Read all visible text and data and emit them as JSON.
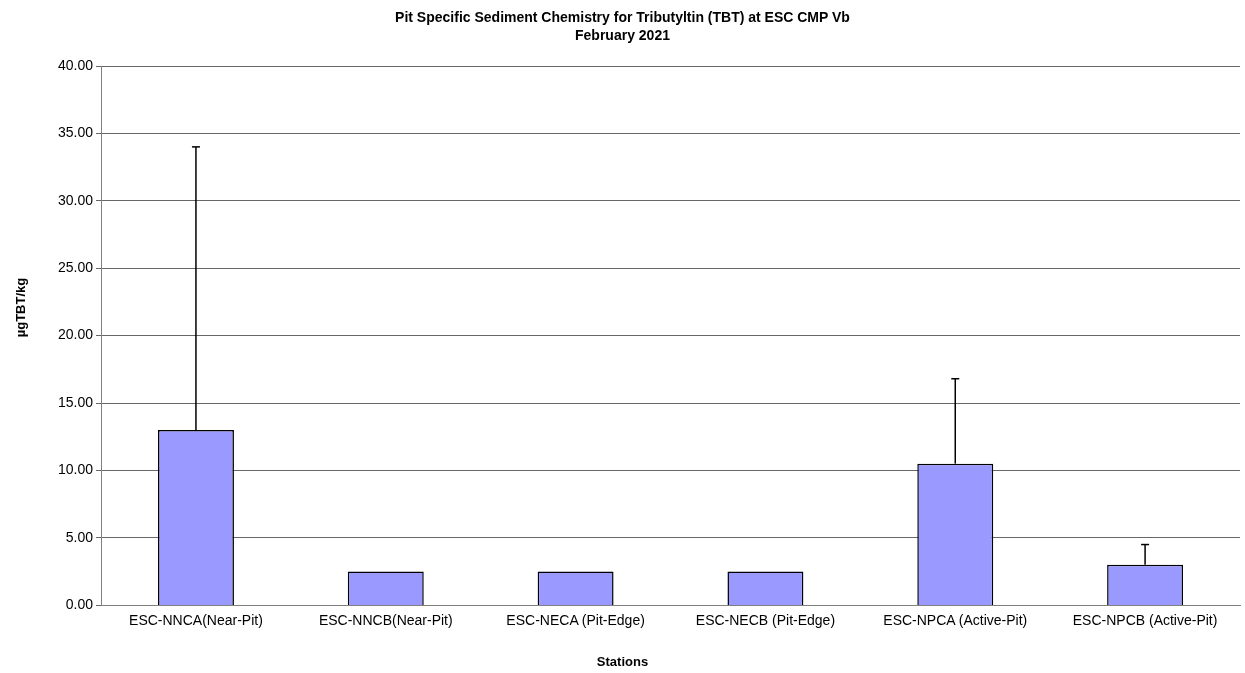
{
  "chart_data": {
    "type": "bar",
    "title": "Pit Specific Sediment Chemistry for Tributyltin (TBT) at  ESC CMP Vb",
    "subtitle": "February 2021",
    "xlabel": "Stations",
    "ylabel": "µgTBT/kg",
    "categories": [
      "ESC-NNCA(Near-Pit)",
      "ESC-NNCB(Near-Pit)",
      "ESC-NECA (Pit-Edge)",
      "ESC-NECB (Pit-Edge)",
      "ESC-NPCA (Active-Pit)",
      "ESC-NPCB (Active-Pit)"
    ],
    "values": [
      13.0,
      2.5,
      2.5,
      2.5,
      10.5,
      3.0
    ],
    "errors": [
      [
        13.0,
        34.0
      ],
      null,
      null,
      null,
      [
        10.5,
        16.8
      ],
      [
        3.0,
        4.5
      ]
    ],
    "color": "#9999ff",
    "ylim": [
      0,
      40
    ],
    "yticks": [
      {
        "value": 0,
        "label": "0.00"
      },
      {
        "value": 5,
        "label": "5.00"
      },
      {
        "value": 10,
        "label": "10.00"
      },
      {
        "value": 15,
        "label": "15.00"
      },
      {
        "value": 20,
        "label": "20.00"
      },
      {
        "value": 25,
        "label": "25.00"
      },
      {
        "value": 30,
        "label": "30.00"
      },
      {
        "value": 35,
        "label": "35.00"
      },
      {
        "value": 40,
        "label": "40.00"
      }
    ],
    "grid": "y",
    "legend": false
  }
}
